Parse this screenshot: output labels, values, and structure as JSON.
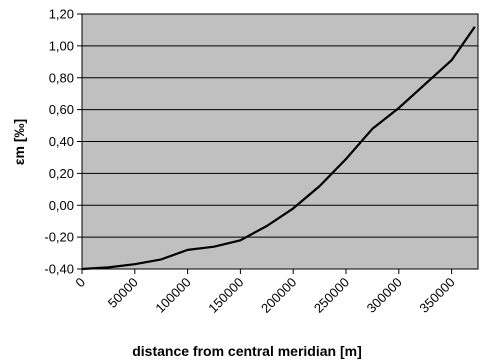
{
  "chart_data": {
    "type": "line",
    "title": "",
    "xlabel": "distance from central meridian [m]",
    "ylabel": "εm [‰]",
    "xlim": [
      0,
      375000
    ],
    "ylim": [
      -0.4,
      1.2
    ],
    "x_ticks": [
      0,
      50000,
      100000,
      150000,
      200000,
      250000,
      300000,
      350000
    ],
    "x_tick_labels": [
      "0",
      "50000",
      "100000",
      "150000",
      "200000",
      "250000",
      "300000",
      "350000"
    ],
    "y_ticks": [
      -0.4,
      -0.2,
      0.0,
      0.2,
      0.4,
      0.6,
      0.8,
      1.0,
      1.2
    ],
    "y_tick_labels": [
      "-0,40",
      "-0,20",
      "0,00",
      "0,20",
      "0,40",
      "0,60",
      "0,80",
      "1,00",
      "1,20"
    ],
    "grid": "horizontal",
    "legend": "none",
    "colors": {
      "plot_background": "#c0c0c0",
      "line": "#000000",
      "grid": "#000000"
    },
    "series": [
      {
        "x": [
          0,
          25000,
          50000,
          75000,
          100000,
          125000,
          150000,
          175000,
          200000,
          225000,
          250000,
          275000,
          300000,
          325000,
          350000,
          372000
        ],
        "values": [
          -0.4,
          -0.39,
          -0.37,
          -0.34,
          -0.28,
          -0.26,
          -0.22,
          -0.13,
          -0.02,
          0.12,
          0.29,
          0.48,
          0.61,
          0.76,
          0.91,
          1.12
        ]
      }
    ]
  }
}
